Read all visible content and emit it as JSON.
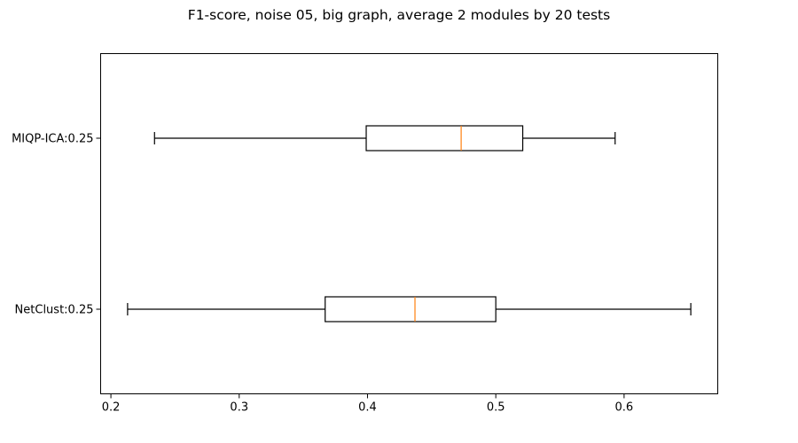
{
  "chart_data": {
    "type": "boxplot",
    "orientation": "horizontal",
    "title": "F1-score, noise 05, big graph, average 2 modules by 20 tests",
    "xlabel": "",
    "ylabel": "",
    "xlim": [
      0.192,
      0.673
    ],
    "xticks": [
      0.2,
      0.3,
      0.4,
      0.5,
      0.6
    ],
    "xtick_labels": [
      "0.2",
      "0.3",
      "0.4",
      "0.5",
      "0.6"
    ],
    "grid": false,
    "colors": {
      "box": "#000000",
      "median": "#ff7f0e",
      "background": "#ffffff"
    },
    "series": [
      {
        "name": "MIQP-ICA:0.25",
        "whisker_low": 0.234,
        "q1": 0.399,
        "median": 0.473,
        "q3": 0.521,
        "whisker_high": 0.593
      },
      {
        "name": "NetClust:0.25",
        "whisker_low": 0.213,
        "q1": 0.367,
        "median": 0.437,
        "q3": 0.5,
        "whisker_high": 0.652
      }
    ]
  }
}
